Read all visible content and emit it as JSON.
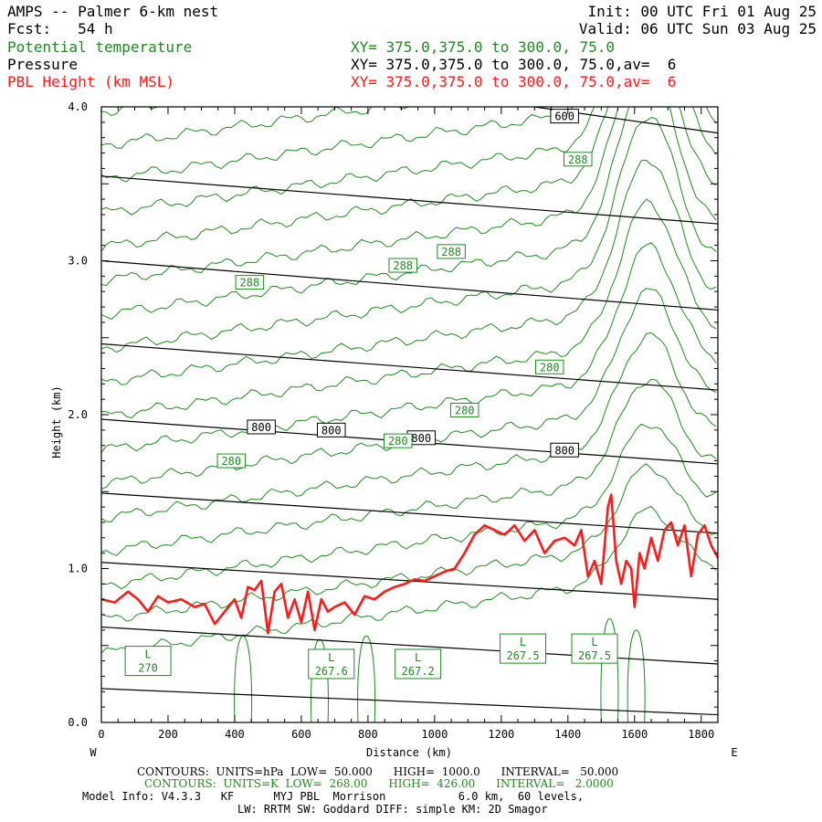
{
  "header": {
    "title": "AMPS -- Palmer 6-km nest",
    "fcst": "Fcst:   54 h",
    "init": "Init: 00 UTC Fri 01 Aug 25",
    "valid": "Valid: 06 UTC Sun 03 Aug 25",
    "fields": [
      {
        "label": "Potential temperature",
        "xy": "XY= 375.0,375.0 to 300.0, 75.0",
        "color": "#1f8a1f"
      },
      {
        "label": "Pressure",
        "xy": "XY= 375.0,375.0 to 300.0, 75.0,av=  6",
        "color": "#000000"
      },
      {
        "label": "PBL Height (km MSL)",
        "xy": "XY= 375.0,375.0 to 300.0, 75.0,av=  6",
        "color": "#ff1a1a"
      }
    ]
  },
  "footer": {
    "line1": "CONTOURS:  UNITS=hPa  LOW=  50.000      HIGH=  1000.0      INTERVAL=   50.000",
    "line2": "CONTOURS:  UNITS=K  LOW=  268.00      HIGH=  426.00      INTERVAL=   2.0000",
    "line3": "Model Info: V4.3.3   KF      MYJ PBL  Morrison           6.0 km,  60 levels,",
    "line4": "LW: RRTM SW: Goddard DIFF: simple KM: 2D Smagor"
  },
  "chart_data": {
    "type": "line",
    "xlabel": "Distance (km)",
    "ylabel": "Height (km)",
    "xlim": [
      0,
      1850
    ],
    "ylim": [
      0.0,
      4.0
    ],
    "x_ticks": [
      0,
      200,
      400,
      600,
      800,
      1000,
      1200,
      1400,
      1600,
      1800
    ],
    "y_ticks": [
      0.0,
      1.0,
      2.0,
      3.0,
      4.0
    ],
    "y_tick_labels": [
      "0.0",
      "1.0",
      "2.0",
      "3.0",
      "4.0"
    ],
    "west_label": "W",
    "east_label": "E",
    "pressure_isobars": [
      {
        "x": [
          0,
          1850
        ],
        "y": [
          0.22,
          0.05
        ]
      },
      {
        "x": [
          0,
          1850
        ],
        "y": [
          0.62,
          0.38
        ]
      },
      {
        "x": [
          0,
          1850
        ],
        "y": [
          1.04,
          0.8
        ]
      },
      {
        "x": [
          0,
          1850
        ],
        "y": [
          1.49,
          1.23
        ]
      },
      {
        "x": [
          0,
          1850
        ],
        "y": [
          1.97,
          1.68
        ]
      },
      {
        "x": [
          0,
          1850
        ],
        "y": [
          2.46,
          2.16
        ]
      },
      {
        "x": [
          0,
          1850
        ],
        "y": [
          3.0,
          2.68
        ]
      },
      {
        "x": [
          0,
          1850
        ],
        "y": [
          3.55,
          3.24
        ]
      },
      {
        "x": [
          1300,
          1850
        ],
        "y": [
          4.0,
          3.83
        ]
      }
    ],
    "pressure_labels": [
      {
        "text": "600",
        "x": 1390,
        "y": 3.94
      },
      {
        "text": "800",
        "x": 480,
        "y": 1.92
      },
      {
        "text": "800",
        "x": 690,
        "y": 1.9
      },
      {
        "text": "800",
        "x": 960,
        "y": 1.85
      },
      {
        "text": "800",
        "x": 1390,
        "y": 1.77
      }
    ],
    "theta_labels": [
      {
        "text": "288",
        "x": 1430,
        "y": 3.66
      },
      {
        "text": "288",
        "x": 1050,
        "y": 3.06
      },
      {
        "text": "288",
        "x": 905,
        "y": 2.97
      },
      {
        "text": "288",
        "x": 445,
        "y": 2.86
      },
      {
        "text": "280",
        "x": 1345,
        "y": 2.31
      },
      {
        "text": "280",
        "x": 1090,
        "y": 2.03
      },
      {
        "text": "280",
        "x": 890,
        "y": 1.83
      },
      {
        "text": "280",
        "x": 390,
        "y": 1.7
      }
    ],
    "low_centers": [
      {
        "label": "L",
        "value": "270",
        "x": 140,
        "y": 0.4
      },
      {
        "label": "L",
        "value": "267.6",
        "x": 690,
        "y": 0.38
      },
      {
        "label": "L",
        "value": "267.2",
        "x": 950,
        "y": 0.38
      },
      {
        "label": "L",
        "value": "267.5",
        "x": 1265,
        "y": 0.48
      },
      {
        "label": "L",
        "value": "267.5",
        "x": 1480,
        "y": 0.48
      }
    ],
    "pbl_height": {
      "name": "PBL Height (km MSL)",
      "x": [
        0,
        40,
        80,
        110,
        140,
        170,
        200,
        240,
        280,
        310,
        340,
        370,
        400,
        420,
        440,
        460,
        480,
        500,
        520,
        540,
        560,
        580,
        600,
        620,
        640,
        660,
        680,
        700,
        730,
        760,
        790,
        820,
        850,
        880,
        910,
        940,
        970,
        1000,
        1030,
        1060,
        1090,
        1120,
        1150,
        1180,
        1210,
        1240,
        1270,
        1300,
        1330,
        1360,
        1390,
        1420,
        1440,
        1460,
        1480,
        1500,
        1520,
        1530,
        1545,
        1560,
        1575,
        1590,
        1600,
        1615,
        1630,
        1650,
        1670,
        1690,
        1710,
        1730,
        1750,
        1770,
        1790,
        1810,
        1830,
        1850
      ],
      "y": [
        0.8,
        0.78,
        0.85,
        0.8,
        0.72,
        0.82,
        0.78,
        0.8,
        0.75,
        0.77,
        0.64,
        0.72,
        0.8,
        0.68,
        0.88,
        0.86,
        0.92,
        0.58,
        0.85,
        0.9,
        0.68,
        0.8,
        0.65,
        0.85,
        0.6,
        0.8,
        0.72,
        0.75,
        0.78,
        0.7,
        0.82,
        0.8,
        0.85,
        0.88,
        0.9,
        0.93,
        0.92,
        0.95,
        0.98,
        1.0,
        1.1,
        1.22,
        1.28,
        1.25,
        1.22,
        1.28,
        1.18,
        1.25,
        1.1,
        1.18,
        1.2,
        1.15,
        1.25,
        0.95,
        1.05,
        0.9,
        1.4,
        1.48,
        1.05,
        0.9,
        1.05,
        1.0,
        0.75,
        1.1,
        1.0,
        1.2,
        1.05,
        1.25,
        1.3,
        1.15,
        1.28,
        0.95,
        1.22,
        1.28,
        1.15,
        1.07
      ],
      "color": "#ff1a1a"
    },
    "grid": false
  }
}
